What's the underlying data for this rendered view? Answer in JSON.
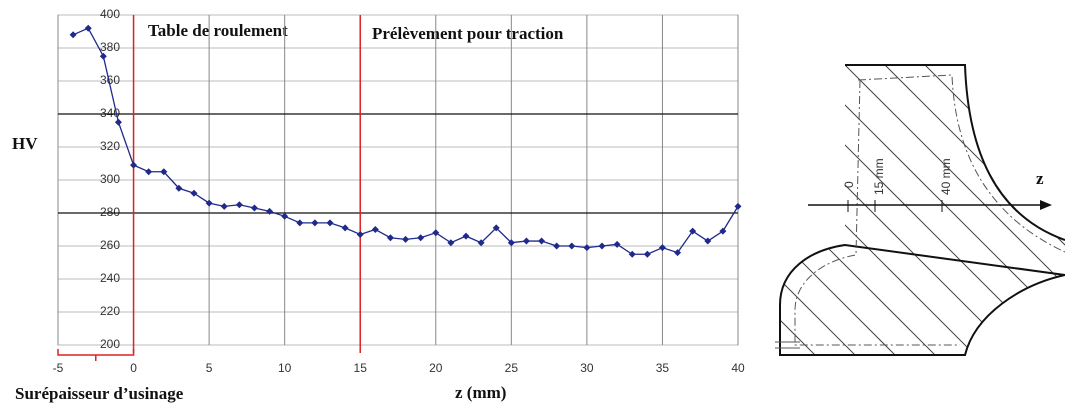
{
  "chart_data": {
    "type": "line",
    "x_label": "z (mm)",
    "y_label": "HV",
    "annotations": [
      "Table de roulement",
      "Prélèvement pour traction",
      "Surépaisseur d’usinage"
    ],
    "x": [
      -4,
      -3,
      -2,
      -1,
      0,
      1,
      2,
      3,
      4,
      5,
      6,
      7,
      8,
      9,
      10,
      11,
      12,
      13,
      14,
      15,
      16,
      17,
      18,
      19,
      20,
      21,
      22,
      23,
      24,
      25,
      26,
      27,
      28,
      29,
      30,
      31,
      32,
      33,
      34,
      35,
      36,
      37,
      38,
      39,
      40
    ],
    "series": [
      {
        "color": "#1f2a8a",
        "values": [
          388,
          392,
          375,
          335,
          309,
          305,
          305,
          295,
          292,
          286,
          284,
          285,
          283,
          281,
          278,
          274,
          274,
          274,
          271,
          267,
          270,
          265,
          264,
          265,
          268,
          262,
          266,
          262,
          271,
          262,
          263,
          263,
          260,
          260,
          259,
          260,
          261,
          255,
          255,
          259,
          256,
          269,
          263,
          269,
          284
        ]
      }
    ],
    "xlim": [
      -5,
      40
    ],
    "xticks": [
      -5,
      0,
      5,
      10,
      15,
      20,
      25,
      30,
      35,
      40
    ],
    "ylim": [
      200,
      400
    ],
    "yticks": [
      200,
      220,
      240,
      260,
      280,
      300,
      320,
      340,
      360,
      380,
      400
    ],
    "hlines": [
      340,
      280
    ],
    "vlines": [
      0,
      15
    ],
    "grid": true
  },
  "diagram": {
    "labels": [
      "0",
      "15 mm",
      "40 mm",
      "z"
    ]
  }
}
